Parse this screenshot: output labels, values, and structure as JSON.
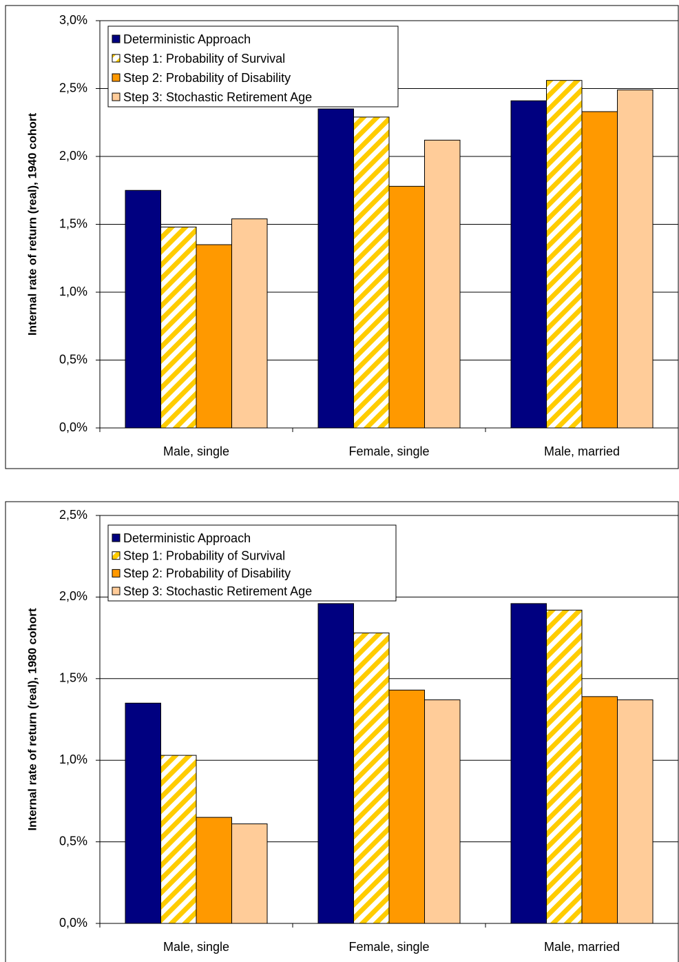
{
  "chart_data": [
    {
      "type": "bar",
      "y_label": "Internal rate of return (real), 1940 cohort",
      "categories": [
        "Male, single",
        "Female, single",
        "Male, married"
      ],
      "series": [
        {
          "name": "Deterministic Approach",
          "color": "#000080",
          "values": [
            1.75,
            2.35,
            2.41
          ]
        },
        {
          "name": "Step 1: Probability of Survival",
          "color": "#ffcc00",
          "hatch": true,
          "values": [
            1.48,
            2.29,
            2.56
          ]
        },
        {
          "name": "Step 2: Probability of Disability",
          "color": "#ff9900",
          "values": [
            1.35,
            1.78,
            2.33
          ]
        },
        {
          "name": "Step 3: Stochastic Retirement Age",
          "color": "#ffcc99",
          "values": [
            1.54,
            2.12,
            2.49
          ]
        }
      ],
      "ylim": [
        0,
        3.0
      ],
      "yticks": [
        {
          "value": 0,
          "label": "0,0%"
        },
        {
          "value": 0.5,
          "label": "0,5%"
        },
        {
          "value": 1.0,
          "label": "1,0%"
        },
        {
          "value": 1.5,
          "label": "1,5%"
        },
        {
          "value": 2.0,
          "label": "2,0%"
        },
        {
          "value": 2.5,
          "label": "2,5%"
        },
        {
          "value": 3.0,
          "label": "3,0%"
        }
      ],
      "grid": true,
      "legend": "top-left"
    },
    {
      "type": "bar",
      "y_label": "Internal rate of return (real), 1980 cohort",
      "categories": [
        "Male, single",
        "Female, single",
        "Male, married"
      ],
      "series": [
        {
          "name": "Deterministic Approach",
          "color": "#000080",
          "values": [
            1.35,
            1.96,
            1.96
          ]
        },
        {
          "name": "Step 1: Probability of Survival",
          "color": "#ffcc00",
          "hatch": true,
          "values": [
            1.03,
            1.78,
            1.92
          ]
        },
        {
          "name": "Step 2: Probability of Disability",
          "color": "#ff9900",
          "values": [
            0.65,
            1.43,
            1.39
          ]
        },
        {
          "name": "Step 3: Stochastic Retirement Age",
          "color": "#ffcc99",
          "values": [
            0.61,
            1.37,
            1.37
          ]
        }
      ],
      "ylim": [
        0,
        2.5
      ],
      "yticks": [
        {
          "value": 0,
          "label": "0,0%"
        },
        {
          "value": 0.5,
          "label": "0,5%"
        },
        {
          "value": 1.0,
          "label": "1,0%"
        },
        {
          "value": 1.5,
          "label": "1,5%"
        },
        {
          "value": 2.0,
          "label": "2,0%"
        },
        {
          "value": 2.5,
          "label": "2,5%"
        }
      ],
      "grid": true,
      "legend": "top-left"
    }
  ]
}
